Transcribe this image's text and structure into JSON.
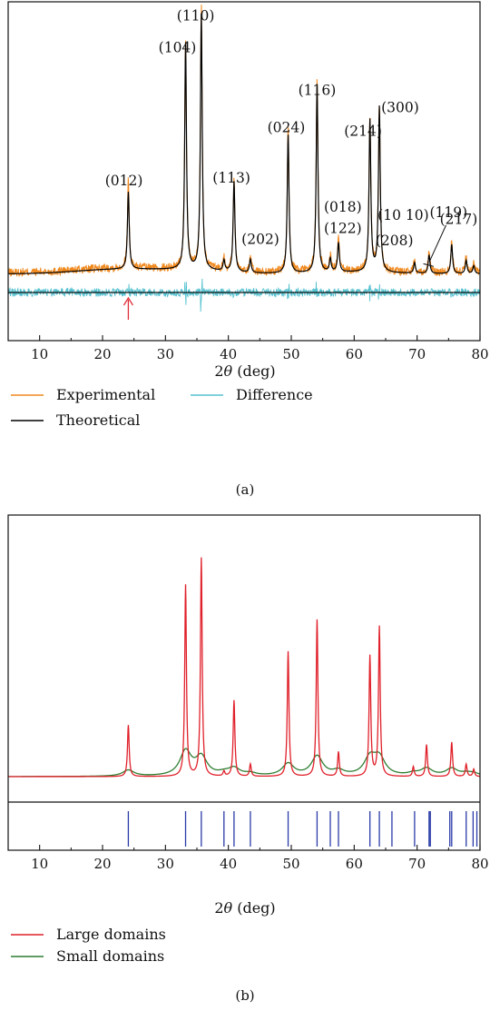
{
  "chart_data": [
    {
      "panel": "(a)",
      "type": "line",
      "xlabel_prefix": "2",
      "xlabel_symbol": "θ",
      "xlabel_suffix": " (deg)",
      "xlim": [
        5,
        80
      ],
      "xticks": [
        "10",
        "20",
        "30",
        "40",
        "50",
        "60",
        "70",
        "80"
      ],
      "grid": false,
      "legend_position": "bottom",
      "series": [
        {
          "name": "Experimental",
          "color": "#F0891E"
        },
        {
          "name": "Theoretical",
          "color": "#000000"
        },
        {
          "name": "Difference",
          "color": "#56C2D0"
        }
      ],
      "legend_order": [
        0,
        2,
        1
      ],
      "peaks": [
        {
          "x": 24.1,
          "h": 0.29,
          "exp_over": 0.05
        },
        {
          "x": 33.2,
          "h": 0.85,
          "exp_over": 0.01
        },
        {
          "x": 35.7,
          "h": 0.96,
          "exp_over": 0.03
        },
        {
          "x": 39.3,
          "h": 0.04,
          "exp_over": 0.01
        },
        {
          "x": 40.9,
          "h": 0.34,
          "exp_over": 0.01
        },
        {
          "x": 43.5,
          "h": 0.05,
          "exp_over": 0.01
        },
        {
          "x": 49.5,
          "h": 0.52,
          "exp_over": 0.02
        },
        {
          "x": 54.1,
          "h": 0.7,
          "exp_over": 0.04
        },
        {
          "x": 56.2,
          "h": 0.05,
          "exp_over": 0.01
        },
        {
          "x": 57.5,
          "h": 0.11,
          "exp_over": 0.01
        },
        {
          "x": 62.5,
          "h": 0.57,
          "exp_over": 0.01
        },
        {
          "x": 64.0,
          "h": 0.62,
          "exp_over": 0.01
        },
        {
          "x": 69.6,
          "h": 0.04,
          "exp_over": 0.01
        },
        {
          "x": 71.9,
          "h": 0.07,
          "exp_over": 0.01
        },
        {
          "x": 75.5,
          "h": 0.11,
          "exp_over": 0.01
        },
        {
          "x": 77.8,
          "h": 0.05,
          "exp_over": 0.01
        },
        {
          "x": 79.0,
          "h": 0.03,
          "exp_over": 0.01
        }
      ],
      "annotations": [
        {
          "text": "(012)",
          "x": 23.4,
          "y": 0.345
        },
        {
          "text": "(104)",
          "x": 31.9,
          "y": 0.845
        },
        {
          "text": "(110)",
          "x": 34.8,
          "y": 0.965
        },
        {
          "text": "(113)",
          "x": 40.5,
          "y": 0.355
        },
        {
          "text": "(202)",
          "x": 45.1,
          "y": 0.125
        },
        {
          "text": "(024)",
          "x": 49.2,
          "y": 0.545
        },
        {
          "text": "(116)",
          "x": 54.1,
          "y": 0.685
        },
        {
          "text": "(018)",
          "x": 58.2,
          "y": 0.245
        },
        {
          "text": "(122)",
          "x": 58.2,
          "y": 0.165
        },
        {
          "text": "(214)",
          "x": 61.4,
          "y": 0.53
        },
        {
          "text": "(300)",
          "x": 67.3,
          "y": 0.62
        },
        {
          "text": "(10 10)",
          "x": 67.8,
          "y": 0.215
        },
        {
          "text": "(208)",
          "x": 66.4,
          "y": 0.12
        },
        {
          "text": "(119)",
          "x": 75.0,
          "y": 0.225
        },
        {
          "text": "(217)",
          "x": 76.6,
          "y": 0.2
        }
      ],
      "marker": {
        "x": 24.1,
        "color": "#E0303A"
      }
    },
    {
      "panel": "(b)",
      "type": "line",
      "xlabel_prefix": "2",
      "xlabel_symbol": "θ",
      "xlabel_suffix": " (deg)",
      "xlim": [
        5,
        80
      ],
      "xticks": [
        "10",
        "20",
        "30",
        "40",
        "50",
        "60",
        "70",
        "80"
      ],
      "grid": false,
      "legend_position": "bottom",
      "series": [
        {
          "name": "Large domains",
          "color": "#E0202A"
        },
        {
          "name": "Small domains",
          "color": "#2E7D32"
        }
      ],
      "peaks": [
        {
          "x": 24.1,
          "large": 0.21,
          "small": 0.025
        },
        {
          "x": 33.2,
          "large": 0.78,
          "small": 0.1
        },
        {
          "x": 35.7,
          "large": 0.89,
          "small": 0.075
        },
        {
          "x": 39.3,
          "large": 0.02,
          "small": 0.01
        },
        {
          "x": 40.9,
          "large": 0.31,
          "small": 0.03
        },
        {
          "x": 43.5,
          "large": 0.05,
          "small": 0.01
        },
        {
          "x": 49.5,
          "large": 0.51,
          "small": 0.05
        },
        {
          "x": 54.1,
          "large": 0.64,
          "small": 0.08
        },
        {
          "x": 57.5,
          "large": 0.1,
          "small": 0.02
        },
        {
          "x": 62.5,
          "large": 0.49,
          "small": 0.07
        },
        {
          "x": 64.0,
          "large": 0.61,
          "small": 0.07
        },
        {
          "x": 69.4,
          "large": 0.04,
          "small": 0.01
        },
        {
          "x": 71.5,
          "large": 0.13,
          "small": 0.03
        },
        {
          "x": 75.5,
          "large": 0.14,
          "small": 0.03
        },
        {
          "x": 77.8,
          "large": 0.05,
          "small": 0.01
        },
        {
          "x": 79.0,
          "large": 0.03,
          "small": 0.01
        }
      ],
      "reflections": {
        "color": "#2A3BA8",
        "x": [
          24.1,
          33.2,
          35.7,
          39.3,
          40.9,
          43.5,
          49.5,
          54.1,
          56.2,
          57.5,
          62.5,
          64.0,
          66.0,
          69.6,
          71.9,
          72.1,
          75.2,
          75.5,
          77.8,
          78.9,
          79.5
        ]
      }
    }
  ]
}
